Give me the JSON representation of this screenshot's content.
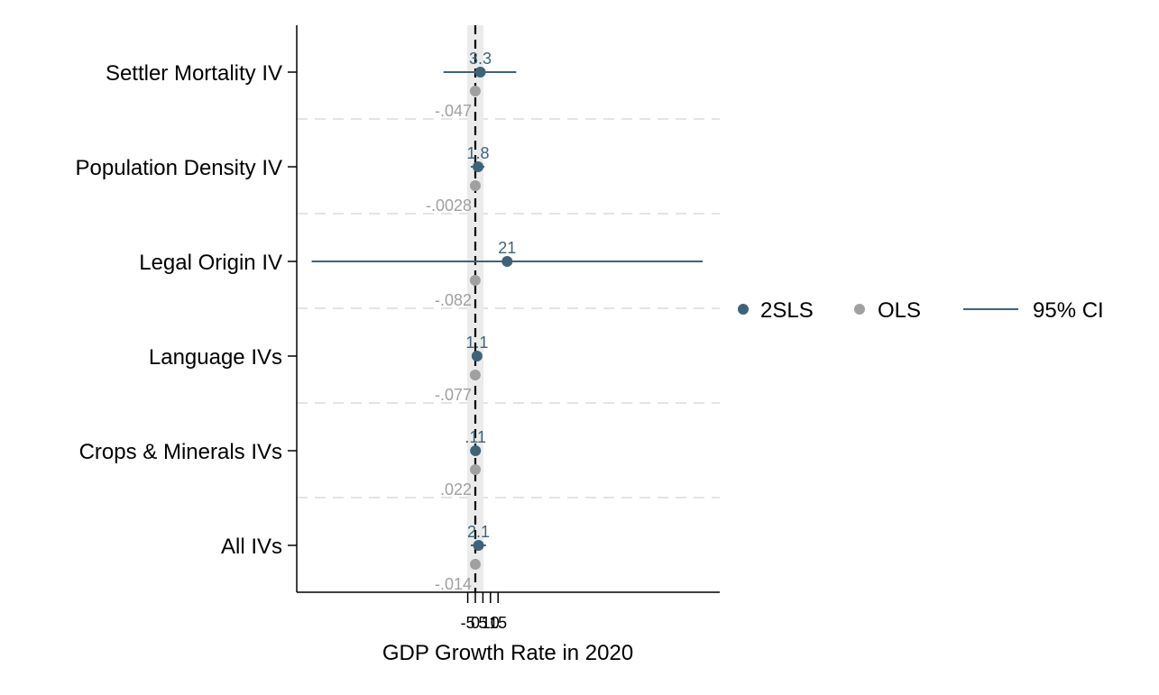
{
  "chart_data": {
    "type": "scatter",
    "subtype": "coefficient-plot",
    "xlabel": "GDP Growth Rate in 2020",
    "ylabel": "",
    "reference_line_x": 0,
    "categories": [
      "Settler Mortality IV",
      "Population Density IV",
      "Legal Origin IV",
      "Language IVs",
      "Crops & Minerals IVs",
      "All IVs"
    ],
    "series": [
      {
        "name": "2SLS",
        "color": "#3e6378",
        "values": [
          3.3,
          1.8,
          21,
          1.1,
          0.11,
          2.1
        ],
        "labels": [
          "3.3",
          "1.8",
          "21",
          "1.1",
          ".11",
          "2.1"
        ],
        "ci_low": [
          -21,
          -3,
          -108,
          -0.6,
          -0.4,
          -3
        ],
        "ci_high": [
          27,
          6,
          150,
          2.5,
          0.6,
          7
        ]
      },
      {
        "name": "OLS",
        "color": "#a0a0a0",
        "values": [
          -0.047,
          -0.0028,
          -0.082,
          -0.077,
          0.022,
          -0.014
        ],
        "labels": [
          "-.047",
          "-.0028",
          "-.082",
          "-.077",
          ".022",
          "-.014"
        ]
      }
    ],
    "ci_name": "95% CI",
    "xlim": [
      -110,
      160
    ],
    "xticks": [
      "-5",
      "0",
      "5",
      "10",
      "15"
    ],
    "grid": false,
    "legend_position": "right"
  }
}
